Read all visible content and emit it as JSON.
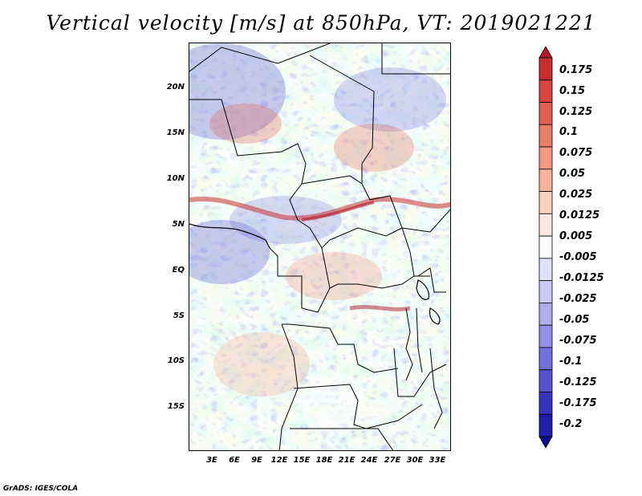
{
  "title": "Vertical velocity [m/s] at 850hPa, VT: 2019021221",
  "credit": "GrADS: IGES/COLA",
  "map": {
    "lat_ticks": [
      "20N",
      "15N",
      "10N",
      "5N",
      "EQ",
      "5S",
      "10S",
      "15S"
    ],
    "lon_ticks": [
      "3E",
      "6E",
      "9E",
      "12E",
      "15E",
      "18E",
      "21E",
      "24E",
      "27E",
      "30E",
      "33E"
    ],
    "lat_range": [
      -20,
      25
    ],
    "lon_range": [
      0,
      35
    ]
  },
  "colorbar": {
    "labels": [
      "0.175",
      "0.15",
      "0.125",
      "0.1",
      "0.075",
      "0.05",
      "0.025",
      "0.0125",
      "0.005",
      "-0.005",
      "-0.0125",
      "-0.025",
      "-0.05",
      "-0.075",
      "-0.1",
      "-0.125",
      "-0.175",
      "-0.2"
    ],
    "colors": [
      "#b2182b",
      "#c62f32",
      "#d6453f",
      "#e0604f",
      "#ea7d66",
      "#f19a80",
      "#f6b49c",
      "#fad0c0",
      "#fde9e1",
      "#ffffff",
      "#e1e1fb",
      "#c9c9f5",
      "#adadee",
      "#8f8fe5",
      "#7070da",
      "#5252cd",
      "#3434be",
      "#1e1ea8",
      "#0a0a8e"
    ]
  }
}
